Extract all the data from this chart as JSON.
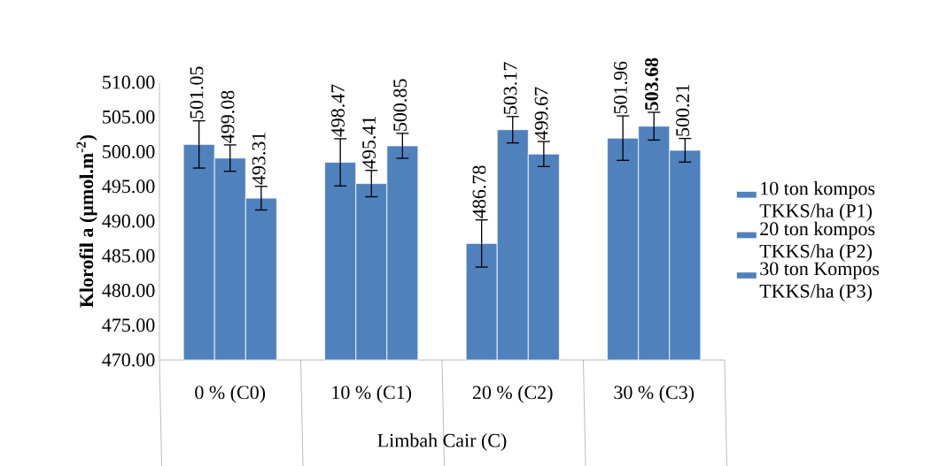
{
  "chart_data": {
    "type": "bar",
    "ylabel": "Klorofil a (µmol.m$^{-2}$)",
    "xlabel": "Limbah Cair (C)",
    "categories": [
      "0 % (C0)",
      "10 % (C1)",
      "20 % (C2)",
      "30 % (C3)"
    ],
    "series": [
      {
        "name": "10 ton kompos TKKS/ha (P1)",
        "color": "#4f81bd",
        "values": [
          501.05,
          498.47,
          486.78,
          501.96
        ],
        "errors": [
          3.4,
          3.4,
          3.4,
          3.2
        ],
        "value_labels": [
          "501.05",
          "498.47",
          "486.78",
          "501.96"
        ]
      },
      {
        "name": "20 ton kompos TKKS/ha (P2)",
        "color": "#4f81bd",
        "values": [
          499.08,
          495.41,
          503.17,
          503.68
        ],
        "errors": [
          1.9,
          1.9,
          1.9,
          2.0
        ],
        "value_labels": [
          "499.08",
          "495.41",
          "503.17",
          "**503.68**"
        ]
      },
      {
        "name": "30 ton Kompos TKKS/ha (P3)",
        "color": "#4f81bd",
        "values": [
          493.31,
          500.85,
          499.67,
          500.21
        ],
        "errors": [
          1.7,
          1.8,
          1.8,
          1.7
        ],
        "value_labels": [
          "493.31",
          "500.85",
          "499.67",
          "500.21"
        ]
      }
    ],
    "ylim": [
      470,
      510
    ],
    "yticks": [
      {
        "value": 470,
        "label": "470.00"
      },
      {
        "value": 475,
        "label": "475.00"
      },
      {
        "value": 480,
        "label": "480.00"
      },
      {
        "value": 485,
        "label": "485.00"
      },
      {
        "value": 490,
        "label": "490.00"
      },
      {
        "value": 495,
        "label": "495.00"
      },
      {
        "value": 500,
        "label": "500.00"
      },
      {
        "value": 505,
        "label": "505.00"
      },
      {
        "value": 510,
        "label": "510.00"
      }
    ],
    "grid": false,
    "legend": "right"
  }
}
